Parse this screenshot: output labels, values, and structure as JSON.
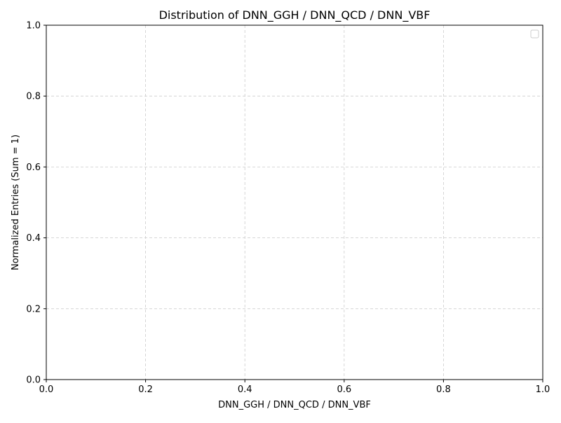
{
  "chart_data": {
    "type": "line",
    "title": "Distribution of DNN_GGH / DNN_QCD /  DNN_VBF",
    "xlabel": "DNN_GGH / DNN_QCD /  DNN_VBF",
    "ylabel": "Normalized Entries (Sum = 1)",
    "xlim": [
      0.0,
      1.0
    ],
    "ylim": [
      0.0,
      1.0
    ],
    "xticks": [
      0.0,
      0.2,
      0.4,
      0.6,
      0.8,
      1.0
    ],
    "yticks": [
      0.0,
      0.2,
      0.4,
      0.6,
      0.8,
      1.0
    ],
    "xtick_labels": [
      "0.0",
      "0.2",
      "0.4",
      "0.6",
      "0.8",
      "1.0"
    ],
    "ytick_labels": [
      "0.0",
      "0.2",
      "0.4",
      "0.6",
      "0.8",
      "1.0"
    ],
    "grid": true,
    "grid_style": "dashed",
    "legend": {
      "placement": "top-right",
      "entries": []
    },
    "series": []
  },
  "colors": {
    "grid": "#cccccc",
    "axis": "#000000",
    "legend_border": "#cccccc"
  }
}
